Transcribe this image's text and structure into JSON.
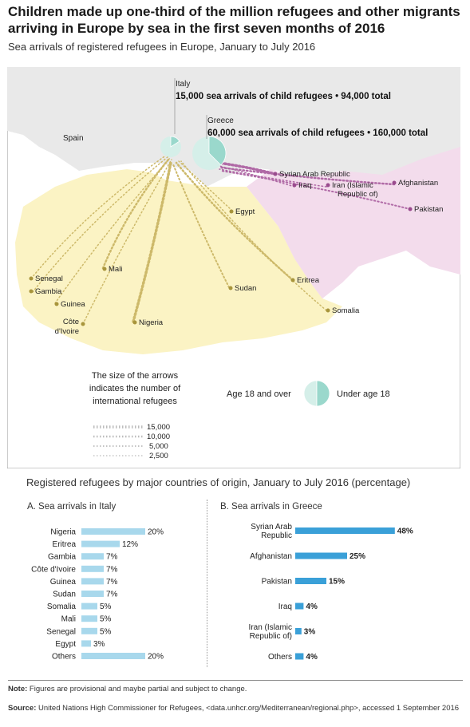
{
  "title": "Children made up one-third of the million refugees and other migrants arriving in Europe by sea in the first seven months of  2016",
  "subtitle": "Sea arrivals of registered refugees in Europe, January to July 2016",
  "colors": {
    "africa": "#fbf3c4",
    "middle_east": "#f3dcec",
    "europe": "#e9e9e9",
    "sea": "#ffffff",
    "africa_arrow": "#cdb96a",
    "asia_arrow": "#b06aa6",
    "adult_slice": "#d5efe9",
    "child_slice": "#9ad8cc",
    "bar": "#a8d8ec",
    "bar_greece": "#3aa0d8",
    "africa_dot": "#a8953c",
    "asia_dot": "#9a4b8e"
  },
  "map": {
    "italy_label": "Italy",
    "italy_detail": "15,000 sea arrivals of child refugees • 94,000 total",
    "greece_label": "Greece",
    "greece_detail": "60,000 sea arrivals of child refugees • 160,000 total",
    "spain_label": "Spain",
    "countries_africa": [
      "Egypt",
      "Mali",
      "Senegal",
      "Gambia",
      "Guinea",
      "Côte d'Ivoire",
      "Nigeria",
      "Sudan",
      "Eritrea",
      "Somalia"
    ],
    "countries_asia": [
      "Syrian Arab Republic",
      "Iraq",
      "Iran (Islamic Republic of)",
      "Afghanistan",
      "Pakistan"
    ],
    "legend_size_text": [
      "The size of the arrows",
      "indicates the number of",
      "international refugees"
    ],
    "legend_values": [
      "15,000",
      "10,000",
      "5,000",
      "2,500"
    ],
    "legend_adult": "Age 18 and over",
    "legend_child": "Under age 18",
    "italy_pie": {
      "child": 15000,
      "total": 94000
    },
    "greece_pie": {
      "child": 60000,
      "total": 160000
    }
  },
  "section_title": "Registered refugees by major countries of origin, January to July 2016 (percentage)",
  "chart_data": [
    {
      "type": "bar",
      "title": "A. Sea arrivals in Italy",
      "categories": [
        "Nigeria",
        "Eritrea",
        "Gambia",
        "Côte d'Ivoire",
        "Guinea",
        "Sudan",
        "Somalia",
        "Mali",
        "Senegal",
        "Egypt",
        "Others"
      ],
      "values": [
        20,
        12,
        7,
        7,
        7,
        7,
        5,
        5,
        5,
        3,
        20
      ],
      "unit": "%",
      "orientation": "horizontal"
    },
    {
      "type": "bar",
      "title": "B. Sea arrivals in Greece",
      "categories": [
        "Syrian Arab Republic",
        "Afghanistan",
        "Pakistan",
        "Iraq",
        "Iran (Islamic Republic of)",
        "Others"
      ],
      "values": [
        48,
        25,
        15,
        4,
        3,
        4
      ],
      "unit": "%",
      "orientation": "horizontal"
    }
  ],
  "note_label": "Note:",
  "note_text": " Figures are provisional and maybe partial and subject to change.",
  "source_label": "Source:",
  "source_text": " United Nations High Commissioner for Refugees, <data.unhcr.org/Mediterranean/regional.php>, accessed 1 September 2016"
}
